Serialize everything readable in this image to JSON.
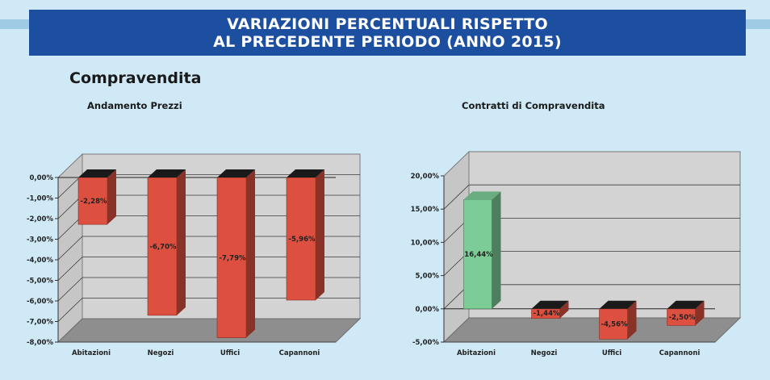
{
  "header": {
    "title_line1": "VARIAZIONI PERCENTUALI RISPETTO",
    "title_line2": "AL PRECEDENTE PERIODO (ANNO 2015)"
  },
  "section": {
    "title": "Compravendita"
  },
  "colors": {
    "negative": "#dd5040",
    "positive": "#7ccc96",
    "banner": "#1d4fa0",
    "background": "#cfe9f7"
  },
  "chart_data": [
    {
      "type": "bar",
      "title": "Andamento Prezzi",
      "categories": [
        "Abitazioni",
        "Negozi",
        "Uffici",
        "Capannoni"
      ],
      "values": [
        -2.28,
        -6.7,
        -7.79,
        -5.96
      ],
      "data_labels": [
        "-2,28%",
        "-6,70%",
        "-7,79%",
        "-5,96%"
      ],
      "yticks": [
        "0,00%",
        "-1,00%",
        "-2,00%",
        "-3,00%",
        "-4,00%",
        "-5,00%",
        "-6,00%",
        "-7,00%",
        "-8,00%"
      ],
      "ylim": [
        -8,
        0
      ],
      "xlabel": "",
      "ylabel": "",
      "grid": true
    },
    {
      "type": "bar",
      "title": "Contratti di Compravendita",
      "categories": [
        "Abitazioni",
        "Negozi",
        "Uffici",
        "Capannoni"
      ],
      "values": [
        16.44,
        -1.44,
        -4.56,
        -2.5
      ],
      "data_labels": [
        "16,44%",
        "-1,44%",
        "-4,56%",
        "-2,50%"
      ],
      "yticks": [
        "20,00%",
        "15,00%",
        "10,00%",
        "5,00%",
        "0,00%",
        "-5,00%"
      ],
      "ylim": [
        -5,
        20
      ],
      "xlabel": "",
      "ylabel": "",
      "grid": true
    }
  ]
}
